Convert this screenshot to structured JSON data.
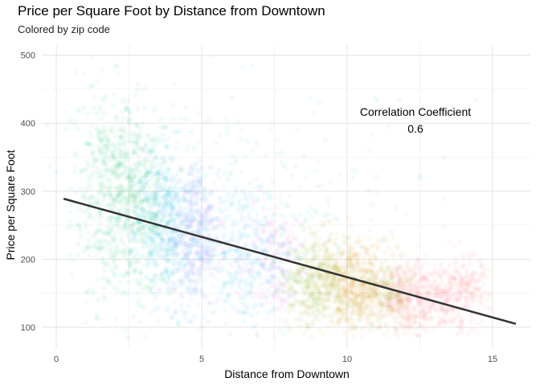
{
  "chart_data": {
    "type": "scatter",
    "title": "Price per Square Foot by Distance from Downtown",
    "subtitle": "Colored by zip code",
    "xlabel": "Distance from Downtown",
    "ylabel": "Price per Square Foot",
    "xlim": [
      -0.5,
      16.3
    ],
    "ylim": [
      68,
      515
    ],
    "x_ticks": [
      0,
      5,
      10,
      15
    ],
    "y_ticks": [
      100,
      200,
      300,
      400,
      500
    ],
    "grid": true,
    "legend": "none",
    "trend_line": {
      "x": [
        0.25,
        15.8
      ],
      "y": [
        289,
        105
      ],
      "color": "#333333"
    },
    "annotation": {
      "label": "Correlation Coefficient",
      "value": "0.6",
      "x": 12.5,
      "y": 395
    },
    "clusters": [
      {
        "x": 1.6,
        "y": 310,
        "sx": 0.55,
        "sy": 75,
        "n": 300,
        "color": "#00BF7D"
      },
      {
        "x": 2.6,
        "y": 285,
        "sx": 0.7,
        "sy": 70,
        "n": 380,
        "color": "#00BA38"
      },
      {
        "x": 3.2,
        "y": 265,
        "sx": 0.6,
        "sy": 60,
        "n": 380,
        "color": "#00BFC4"
      },
      {
        "x": 4.0,
        "y": 245,
        "sx": 0.55,
        "sy": 55,
        "n": 320,
        "color": "#00A9FF"
      },
      {
        "x": 4.7,
        "y": 230,
        "sx": 0.45,
        "sy": 50,
        "n": 280,
        "color": "#619CFF"
      },
      {
        "x": 4.9,
        "y": 240,
        "sx": 0.5,
        "sy": 55,
        "n": 200,
        "color": "#C77CFF"
      },
      {
        "x": 6.5,
        "y": 205,
        "sx": 0.7,
        "sy": 55,
        "n": 260,
        "color": "#00B0F6"
      },
      {
        "x": 7.4,
        "y": 195,
        "sx": 0.6,
        "sy": 50,
        "n": 200,
        "color": "#F564E3"
      },
      {
        "x": 8.8,
        "y": 170,
        "sx": 0.55,
        "sy": 35,
        "n": 300,
        "color": "#7CAE00"
      },
      {
        "x": 9.6,
        "y": 165,
        "sx": 0.55,
        "sy": 35,
        "n": 320,
        "color": "#CD9600"
      },
      {
        "x": 10.4,
        "y": 160,
        "sx": 0.5,
        "sy": 35,
        "n": 300,
        "color": "#E58700"
      },
      {
        "x": 11.2,
        "y": 150,
        "sx": 0.5,
        "sy": 30,
        "n": 260,
        "color": "#A3A500"
      },
      {
        "x": 12.1,
        "y": 145,
        "sx": 0.5,
        "sy": 25,
        "n": 300,
        "color": "#F8766D"
      },
      {
        "x": 13.2,
        "y": 145,
        "sx": 0.6,
        "sy": 25,
        "n": 280,
        "color": "#FF6C91"
      },
      {
        "x": 14.1,
        "y": 155,
        "sx": 0.4,
        "sy": 25,
        "n": 140,
        "color": "#F8766D"
      },
      {
        "x": 7.0,
        "y": 260,
        "sx": 3.0,
        "sy": 100,
        "n": 300,
        "color": "#00C1A3"
      }
    ]
  }
}
